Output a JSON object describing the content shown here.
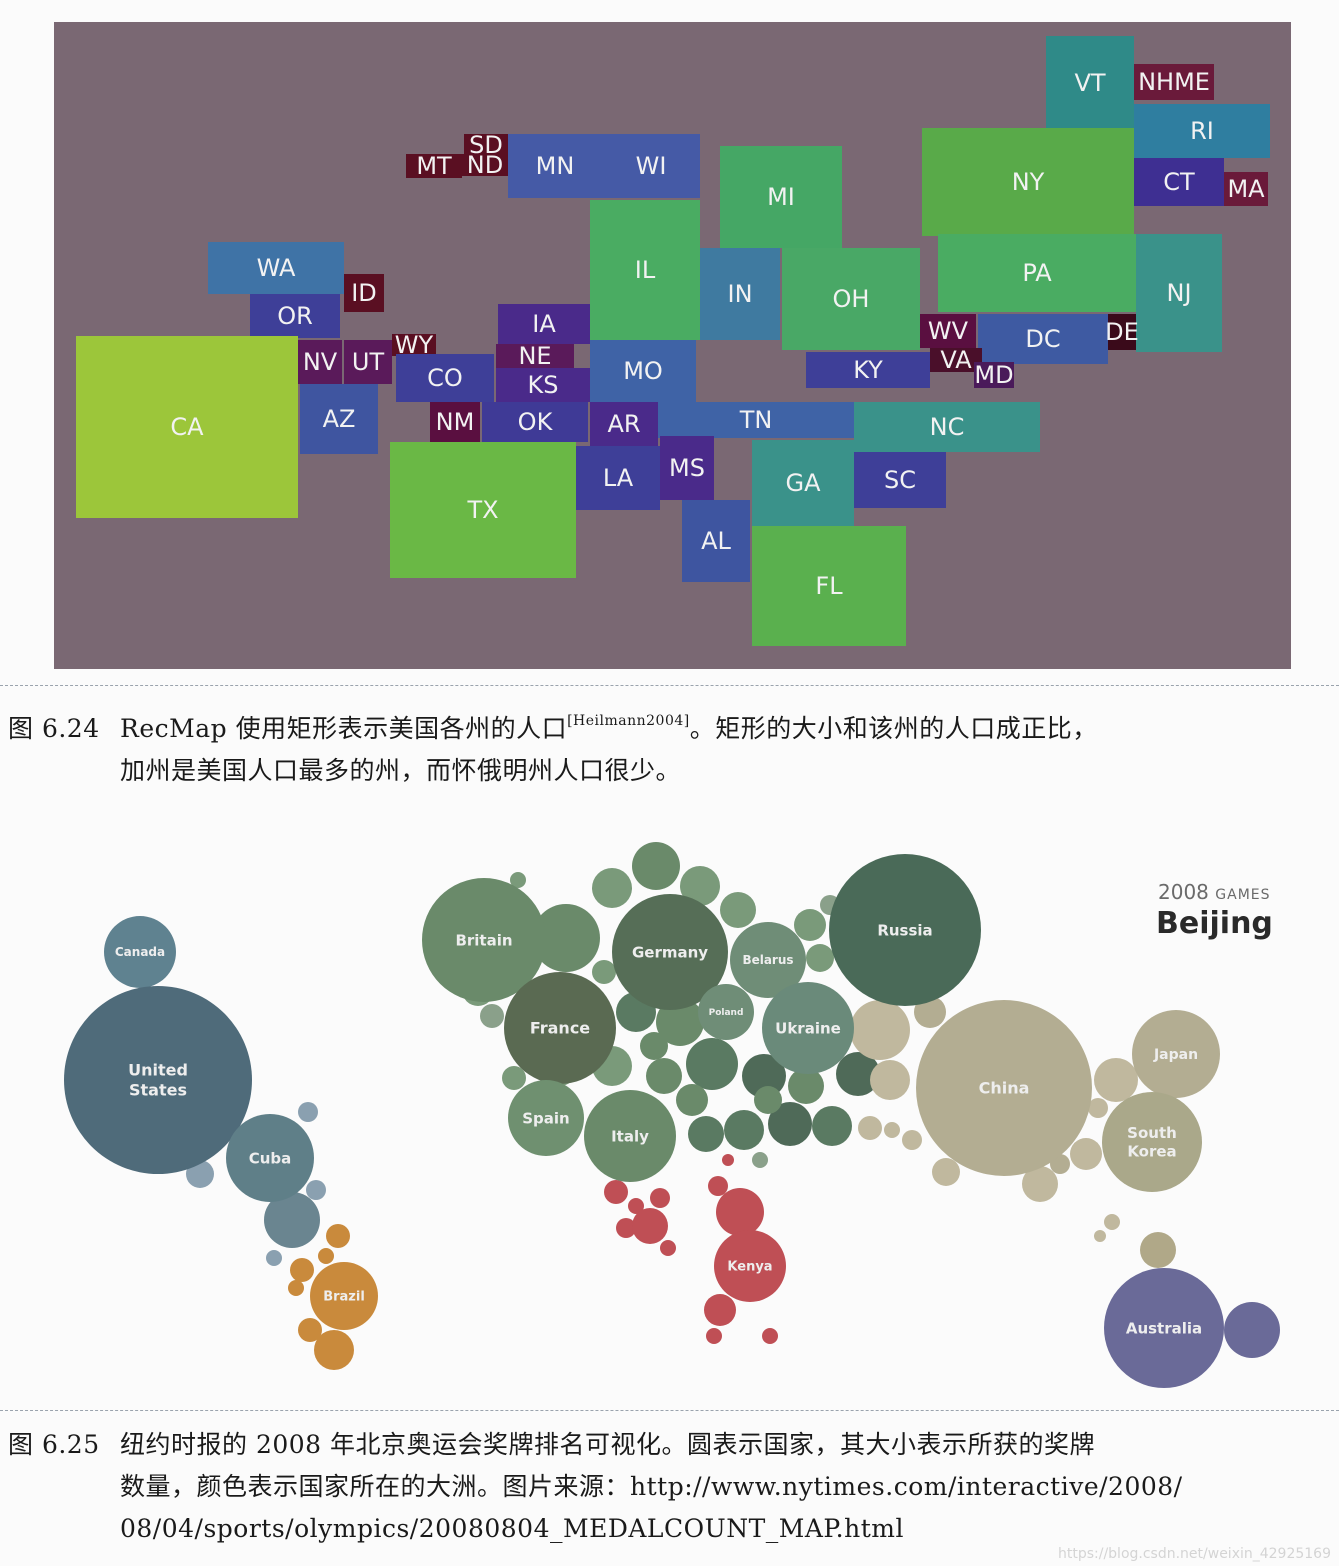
{
  "fig1": {
    "states": [
      {
        "label": "VT",
        "color": "#2f8a88"
      },
      {
        "label": "NHME",
        "color": "#6a1a3a"
      },
      {
        "label": "RI",
        "color": "#2f7ea0"
      },
      {
        "label": "NY",
        "color": "#59aa49"
      },
      {
        "label": "CT",
        "color": "#3e2f92"
      },
      {
        "label": "MA",
        "color": "#6a1a3a"
      },
      {
        "label": "MI",
        "color": "#45a765"
      },
      {
        "label": "SD",
        "color": "#5a0f22"
      },
      {
        "label": "ND",
        "color": "#5a0f22"
      },
      {
        "label": "MT",
        "color": "#5a0f22"
      },
      {
        "label": "MN",
        "color": "#455aa6"
      },
      {
        "label": "WI",
        "color": "#455aa6"
      },
      {
        "label": "IL",
        "color": "#4aac62"
      },
      {
        "label": "PA",
        "color": "#4aac62"
      },
      {
        "label": "NJ",
        "color": "#3a928a"
      },
      {
        "label": "WA",
        "color": "#3f73a6"
      },
      {
        "label": "ID",
        "color": "#5a0f22"
      },
      {
        "label": "OR",
        "color": "#3e3f98"
      },
      {
        "label": "IN",
        "color": "#3f7aa0"
      },
      {
        "label": "OH",
        "color": "#49a866"
      },
      {
        "label": "WV",
        "color": "#5a0f40"
      },
      {
        "label": "DC",
        "color": "#3e5aa2"
      },
      {
        "label": "DE",
        "color": "#3a0a1a"
      },
      {
        "label": "IA",
        "color": "#4a2a8a"
      },
      {
        "label": "WY",
        "color": "#5a0f22"
      },
      {
        "label": "NV",
        "color": "#5a1a5a"
      },
      {
        "label": "UT",
        "color": "#5a1a5a"
      },
      {
        "label": "NE",
        "color": "#5a1a5a"
      },
      {
        "label": "KS",
        "color": "#4a2a8a"
      },
      {
        "label": "CO",
        "color": "#3e3f98"
      },
      {
        "label": "MO",
        "color": "#3f63a6"
      },
      {
        "label": "KY",
        "color": "#3e3f98"
      },
      {
        "label": "VA",
        "color": "#4a0f2a"
      },
      {
        "label": "MD",
        "color": "#4a1a5a"
      },
      {
        "label": "CA",
        "color": "#9cc63a"
      },
      {
        "label": "AZ",
        "color": "#3f55a0"
      },
      {
        "label": "NM",
        "color": "#5a0f40"
      },
      {
        "label": "OK",
        "color": "#3f3a96"
      },
      {
        "label": "AR",
        "color": "#4a2a8a"
      },
      {
        "label": "TN",
        "color": "#3f63a6"
      },
      {
        "label": "NC",
        "color": "#3a928a"
      },
      {
        "label": "TX",
        "color": "#6ab845"
      },
      {
        "label": "LA",
        "color": "#3e3f98"
      },
      {
        "label": "MS",
        "color": "#4a2a8a"
      },
      {
        "label": "GA",
        "color": "#3a928a"
      },
      {
        "label": "SC",
        "color": "#3e3f98"
      },
      {
        "label": "AL",
        "color": "#3e55a0"
      },
      {
        "label": "FL",
        "color": "#5ab04e"
      }
    ]
  },
  "caption1": {
    "number": "图 6.24",
    "text_a": "RecMap 使用矩形表示美国各州的人口",
    "cite": "[Heilmann2004]",
    "text_b": "。矩形的大小和该州的人口成正比，",
    "line2": "加州是美国人口最多的州，而怀俄明州人口很少。"
  },
  "fig2": {
    "year": "2008",
    "games": "GAMES",
    "city": "Beijing",
    "countries": [
      {
        "label": "Canada",
        "color": "#5f8290"
      },
      {
        "label": "United\nStates",
        "color": "#4f6b7a"
      },
      {
        "label": "Cuba",
        "color": "#5f7f88"
      },
      {
        "label": "Brazil",
        "color": "#c98a3c"
      },
      {
        "label": "Britain",
        "color": "#6a8a6a"
      },
      {
        "label": "Germany",
        "color": "#566e57"
      },
      {
        "label": "Belarus",
        "color": "#6f8d77"
      },
      {
        "label": "Russia",
        "color": "#4a6a58"
      },
      {
        "label": "France",
        "color": "#5a6a52"
      },
      {
        "label": "Poland",
        "color": "#6f8d77"
      },
      {
        "label": "Ukraine",
        "color": "#6a8a7a"
      },
      {
        "label": "Spain",
        "color": "#6f9070"
      },
      {
        "label": "Italy",
        "color": "#6a8a6a"
      },
      {
        "label": "China",
        "color": "#b3ad92"
      },
      {
        "label": "Japan",
        "color": "#b3ad92"
      },
      {
        "label": "South\nKorea",
        "color": "#aaa88a"
      },
      {
        "label": "Kenya",
        "color": "#bf4f55"
      },
      {
        "label": "Australia",
        "color": "#6a6a98"
      }
    ]
  },
  "caption2": {
    "number": "图 6.25",
    "line1": "纽约时报的 2008 年北京奥运会奖牌排名可视化。圆表示国家，其大小表示所获的奖牌",
    "line2": "数量，颜色表示国家所在的大洲。图片来源：http://www.nytimes.com/interactive/2008/",
    "line3": "08/04/sports/olympics/20080804_MEDALCOUNT_MAP.html"
  },
  "watermark": "https://blog.csdn.net/weixin_42925169"
}
